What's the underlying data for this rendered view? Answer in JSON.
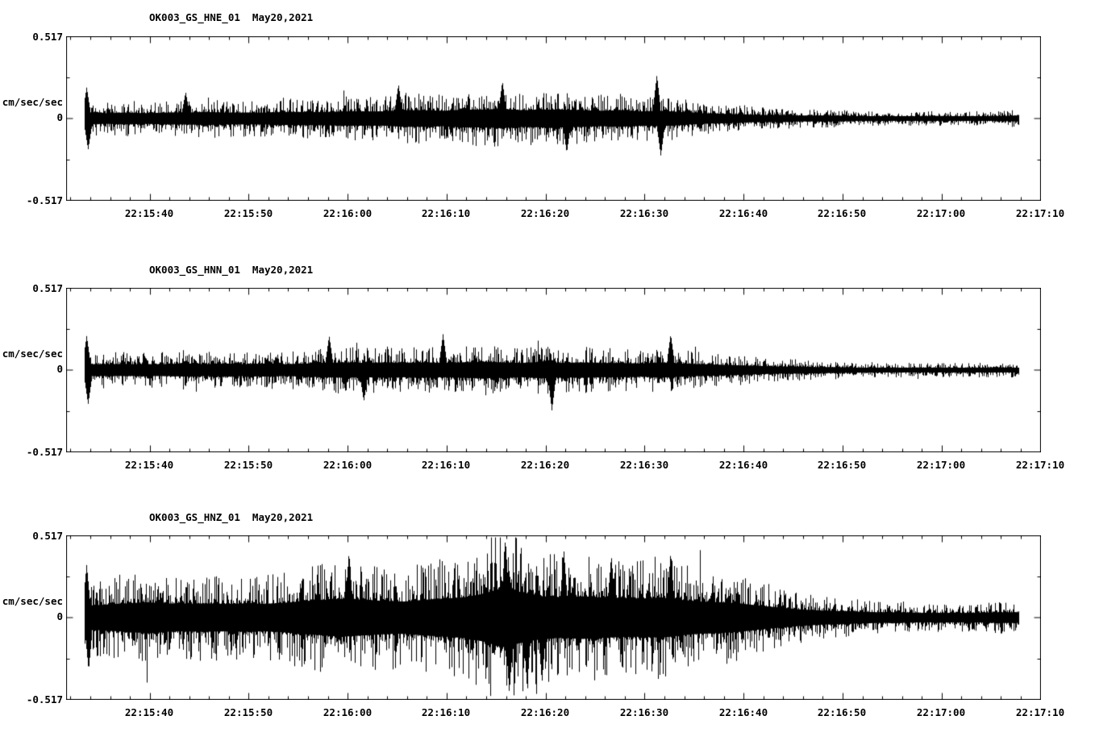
{
  "figure": {
    "background": "#ffffff",
    "trace_color": "#000000",
    "frame_color": "#000000"
  },
  "time_axis": {
    "start_label_offset_s": 8.4,
    "duration_s": 98.4,
    "major_tick_interval_s": 10,
    "minor_tick_interval_s": 2,
    "minor_tick_offset_s": 0.4,
    "tick_labels": [
      "22:15:40",
      "22:15:50",
      "22:16:00",
      "22:16:10",
      "22:16:20",
      "22:16:30",
      "22:16:40",
      "22:16:50",
      "22:17:00",
      "22:17:10"
    ]
  },
  "chart_data": [
    {
      "type": "line",
      "kind": "seismogram",
      "title": "OK003_GS_HNE_01  May20,2021",
      "station_channel": "OK003_GS_HNE_01",
      "date": "May20,2021",
      "ylabel": "cm/sec/sec",
      "ylim": [
        -0.517,
        0.517
      ],
      "y_tick_labels": [
        "0.517",
        "0",
        "-0.517"
      ],
      "x_tick_labels": [
        "22:15:40",
        "22:15:50",
        "22:16:00",
        "22:16:10",
        "22:16:20",
        "22:16:30",
        "22:16:40",
        "22:16:50",
        "22:17:00",
        "22:17:10"
      ],
      "data_window_s": [
        1.8,
        96.2
      ],
      "envelope_step_s": 2,
      "envelope_amplitude_cm_s2": [
        0.13,
        0.1,
        0.09,
        0.1,
        0.09,
        0.1,
        0.1,
        0.11,
        0.1,
        0.1,
        0.1,
        0.11,
        0.11,
        0.11,
        0.12,
        0.12,
        0.12,
        0.14,
        0.14,
        0.13,
        0.15,
        0.15,
        0.16,
        0.14,
        0.15,
        0.15,
        0.14,
        0.13,
        0.14,
        0.12,
        0.13,
        0.11,
        0.09,
        0.08,
        0.07,
        0.06,
        0.06,
        0.05,
        0.05,
        0.05,
        0.04,
        0.04,
        0.04,
        0.04,
        0.04,
        0.04,
        0.04,
        0.04,
        0.05,
        0.05
      ],
      "spikes": [
        {
          "t_s": 2.0,
          "amp_cm_s2": 0.2
        },
        {
          "t_s": 2.15,
          "amp_cm_s2": -0.2
        },
        {
          "t_s": 12.0,
          "amp_cm_s2": 0.17
        },
        {
          "t_s": 33.5,
          "amp_cm_s2": 0.22
        },
        {
          "t_s": 44.0,
          "amp_cm_s2": 0.24
        },
        {
          "t_s": 50.5,
          "amp_cm_s2": -0.22
        },
        {
          "t_s": 59.6,
          "amp_cm_s2": 0.28
        },
        {
          "t_s": 60.0,
          "amp_cm_s2": -0.24
        }
      ],
      "noise_seed": 11
    },
    {
      "type": "line",
      "kind": "seismogram",
      "title": "OK003_GS_HNN_01  May20,2021",
      "station_channel": "OK003_GS_HNN_01",
      "date": "May20,2021",
      "ylabel": "cm/sec/sec",
      "ylim": [
        -0.517,
        0.517
      ],
      "y_tick_labels": [
        "0.517",
        "0",
        "-0.517"
      ],
      "x_tick_labels": [
        "22:15:40",
        "22:15:50",
        "22:16:00",
        "22:16:10",
        "22:16:20",
        "22:16:30",
        "22:16:40",
        "22:16:50",
        "22:17:00",
        "22:17:10"
      ],
      "data_window_s": [
        1.8,
        96.2
      ],
      "envelope_step_s": 2,
      "envelope_amplitude_cm_s2": [
        0.14,
        0.1,
        0.1,
        0.1,
        0.1,
        0.1,
        0.11,
        0.1,
        0.11,
        0.1,
        0.11,
        0.1,
        0.11,
        0.12,
        0.13,
        0.12,
        0.13,
        0.12,
        0.13,
        0.12,
        0.13,
        0.14,
        0.13,
        0.12,
        0.14,
        0.12,
        0.13,
        0.12,
        0.12,
        0.11,
        0.13,
        0.11,
        0.1,
        0.09,
        0.08,
        0.07,
        0.06,
        0.06,
        0.05,
        0.05,
        0.04,
        0.04,
        0.04,
        0.04,
        0.04,
        0.04,
        0.04,
        0.04,
        0.04,
        0.05
      ],
      "spikes": [
        {
          "t_s": 2.0,
          "amp_cm_s2": 0.22
        },
        {
          "t_s": 2.15,
          "amp_cm_s2": -0.22
        },
        {
          "t_s": 26.5,
          "amp_cm_s2": 0.22
        },
        {
          "t_s": 30.0,
          "amp_cm_s2": -0.2
        },
        {
          "t_s": 38.0,
          "amp_cm_s2": 0.23
        },
        {
          "t_s": 49.0,
          "amp_cm_s2": -0.26
        },
        {
          "t_s": 61.0,
          "amp_cm_s2": 0.23
        }
      ],
      "noise_seed": 22
    },
    {
      "type": "line",
      "kind": "seismogram",
      "title": "OK003_GS_HNZ_01  May20,2021",
      "station_channel": "OK003_GS_HNZ_01",
      "date": "May20,2021",
      "ylabel": "cm/sec/sec",
      "ylim": [
        -0.517,
        0.517
      ],
      "y_tick_labels": [
        "0.517",
        "0",
        "-0.517"
      ],
      "x_tick_labels": [
        "22:15:40",
        "22:15:50",
        "22:16:00",
        "22:16:10",
        "22:16:20",
        "22:16:30",
        "22:16:40",
        "22:16:50",
        "22:17:00",
        "22:17:10"
      ],
      "data_window_s": [
        1.8,
        96.2
      ],
      "envelope_step_s": 2,
      "envelope_amplitude_cm_s2": [
        0.26,
        0.2,
        0.22,
        0.24,
        0.26,
        0.24,
        0.23,
        0.24,
        0.23,
        0.24,
        0.23,
        0.25,
        0.28,
        0.3,
        0.32,
        0.3,
        0.28,
        0.27,
        0.3,
        0.32,
        0.34,
        0.4,
        0.5,
        0.42,
        0.36,
        0.34,
        0.36,
        0.34,
        0.33,
        0.32,
        0.34,
        0.3,
        0.27,
        0.26,
        0.24,
        0.2,
        0.17,
        0.14,
        0.12,
        0.11,
        0.1,
        0.09,
        0.09,
        0.08,
        0.08,
        0.08,
        0.08,
        0.09,
        0.09,
        0.1
      ],
      "spikes": [
        {
          "t_s": 2.0,
          "amp_cm_s2": 0.34
        },
        {
          "t_s": 2.2,
          "amp_cm_s2": -0.34
        },
        {
          "t_s": 28.5,
          "amp_cm_s2": 0.42
        },
        {
          "t_s": 44.3,
          "amp_cm_s2": 0.51
        },
        {
          "t_s": 44.7,
          "amp_cm_s2": -0.49
        },
        {
          "t_s": 46.5,
          "amp_cm_s2": -0.45
        },
        {
          "t_s": 48.0,
          "amp_cm_s2": -0.42
        },
        {
          "t_s": 50.2,
          "amp_cm_s2": 0.44
        },
        {
          "t_s": 55.0,
          "amp_cm_s2": 0.4
        },
        {
          "t_s": 61.0,
          "amp_cm_s2": 0.42
        }
      ],
      "noise_seed": 33
    }
  ]
}
